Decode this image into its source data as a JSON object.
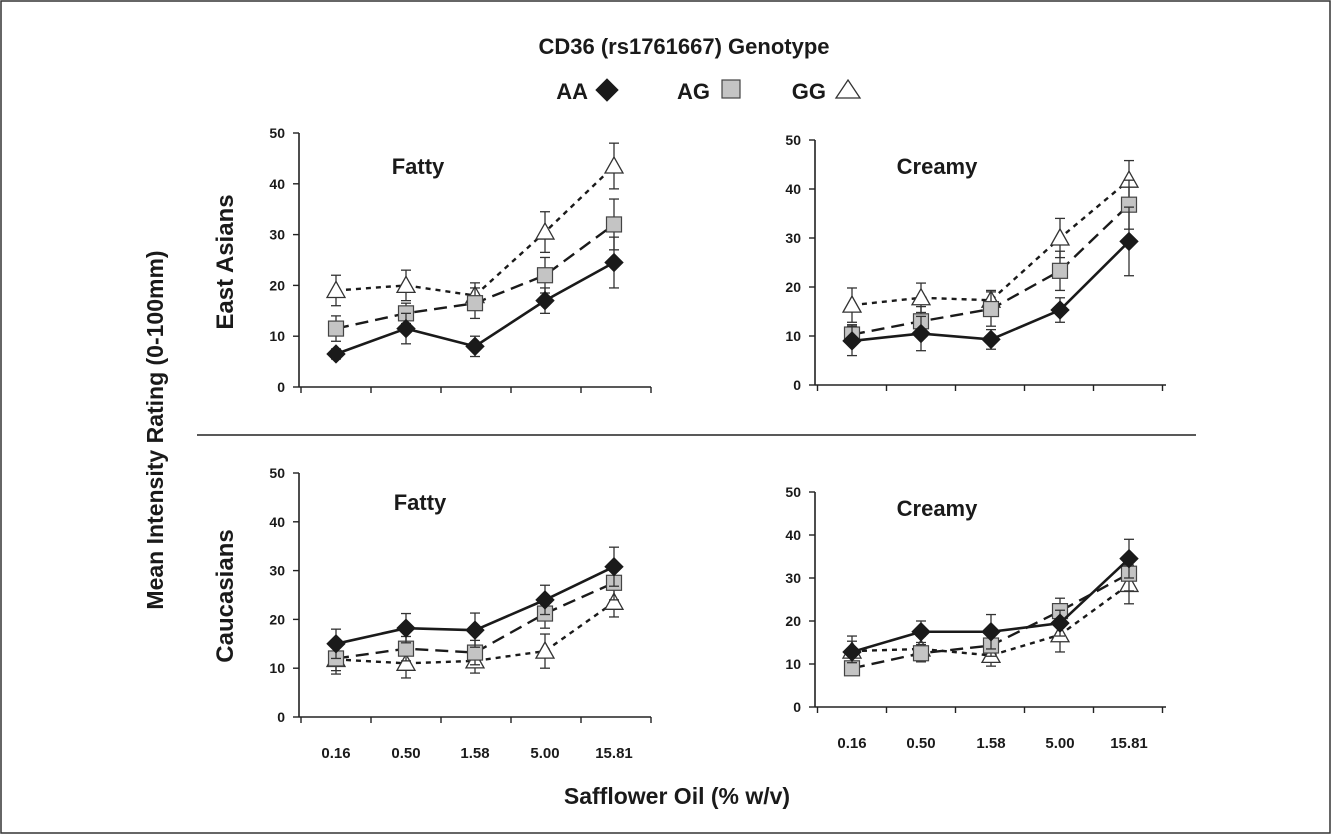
{
  "figure": {
    "title": "CD36 (rs1761667) Genotype",
    "ylabel": "Mean Intensity Rating (0-100mm)",
    "xlabel": "Safflower Oil (% w/v)",
    "groups": [
      "East Asians",
      "Caucasians"
    ],
    "legend": [
      {
        "label": "AA",
        "marker": "filled-diamond",
        "color": "#1a1a1a",
        "line": "solid"
      },
      {
        "label": "AG",
        "marker": "gray-square",
        "color": "#c4c4c4",
        "line": "long-dash"
      },
      {
        "label": "GG",
        "marker": "open-triangle",
        "color": "#ffffff",
        "line": "short-dash"
      }
    ]
  },
  "chart_data": [
    {
      "type": "line",
      "group": "East Asians",
      "title": "Fatty",
      "categories": [
        "0.16",
        "0.50",
        "1.58",
        "5.00",
        "15.81"
      ],
      "ylim": [
        0,
        50
      ],
      "yticks": [
        0,
        10,
        20,
        30,
        40,
        50
      ],
      "series": [
        {
          "name": "AA",
          "values": [
            6.5,
            11.5,
            8.0,
            17.0,
            24.5
          ],
          "errors": [
            1.0,
            3.0,
            2.0,
            2.5,
            5.0
          ]
        },
        {
          "name": "AG",
          "values": [
            11.5,
            14.5,
            16.5,
            22.0,
            32.0
          ],
          "errors": [
            2.5,
            2.0,
            3.0,
            3.5,
            5.0
          ]
        },
        {
          "name": "GG",
          "values": [
            19.0,
            20.0,
            18.0,
            30.5,
            43.5
          ],
          "errors": [
            3.0,
            3.0,
            2.5,
            4.0,
            4.5
          ]
        }
      ]
    },
    {
      "type": "line",
      "group": "East Asians",
      "title": "Creamy",
      "categories": [
        "0.16",
        "0.50",
        "1.58",
        "5.00",
        "15.81"
      ],
      "ylim": [
        0,
        50
      ],
      "yticks": [
        0,
        10,
        20,
        30,
        40,
        50
      ],
      "series": [
        {
          "name": "AA",
          "values": [
            9.0,
            10.5,
            9.3,
            15.3,
            29.3
          ],
          "errors": [
            3.0,
            3.5,
            2.0,
            2.5,
            7.0
          ]
        },
        {
          "name": "AG",
          "values": [
            10.3,
            13.0,
            15.5,
            23.3,
            36.8
          ],
          "errors": [
            2.0,
            3.0,
            3.5,
            4.0,
            5.0
          ]
        },
        {
          "name": "GG",
          "values": [
            16.3,
            17.8,
            17.3,
            30.0,
            41.8
          ],
          "errors": [
            3.5,
            3.0,
            2.0,
            4.0,
            4.0
          ]
        }
      ]
    },
    {
      "type": "line",
      "group": "Caucasians",
      "title": "Fatty",
      "categories": [
        "0.16",
        "0.50",
        "1.58",
        "5.00",
        "15.81"
      ],
      "ylim": [
        0,
        50
      ],
      "yticks": [
        0,
        10,
        20,
        30,
        40,
        50
      ],
      "series": [
        {
          "name": "AA",
          "values": [
            15.0,
            18.2,
            17.8,
            24.0,
            30.8
          ],
          "errors": [
            3.0,
            3.0,
            3.5,
            3.0,
            4.0
          ]
        },
        {
          "name": "AG",
          "values": [
            12.0,
            14.0,
            13.2,
            21.2,
            27.5
          ],
          "errors": [
            2.5,
            2.5,
            2.5,
            3.0,
            3.5
          ]
        },
        {
          "name": "GG",
          "values": [
            11.8,
            11.0,
            11.5,
            13.5,
            23.5
          ],
          "errors": [
            3.0,
            3.0,
            2.5,
            3.5,
            3.0
          ]
        }
      ]
    },
    {
      "type": "line",
      "group": "Caucasians",
      "title": "Creamy",
      "categories": [
        "0.16",
        "0.50",
        "1.58",
        "5.00",
        "15.81"
      ],
      "ylim": [
        0,
        50
      ],
      "yticks": [
        0,
        10,
        20,
        30,
        40,
        50
      ],
      "series": [
        {
          "name": "AA",
          "values": [
            12.8,
            17.5,
            17.5,
            19.5,
            34.5
          ],
          "errors": [
            2.5,
            2.5,
            4.0,
            3.0,
            4.5
          ]
        },
        {
          "name": "AG",
          "values": [
            9.0,
            12.5,
            14.3,
            22.3,
            31.0
          ],
          "errors": [
            1.5,
            2.0,
            2.5,
            3.0,
            4.0
          ]
        },
        {
          "name": "GG",
          "values": [
            13.0,
            13.5,
            12.0,
            16.8,
            28.5
          ],
          "errors": [
            3.5,
            3.0,
            2.5,
            4.0,
            4.5
          ]
        }
      ]
    }
  ]
}
